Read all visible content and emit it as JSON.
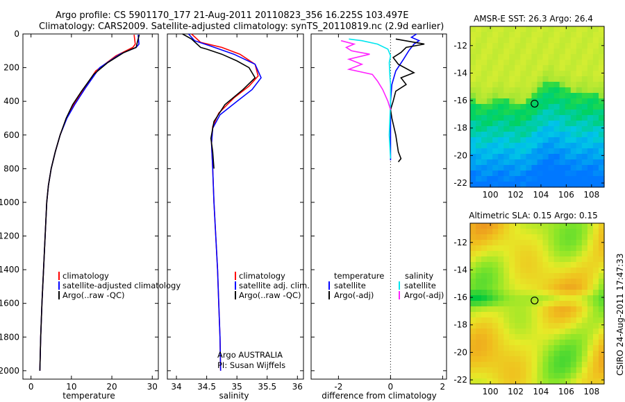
{
  "header": {
    "line1": "Argo profile: CS 5901170_177 21-Aug-2011 20110823_356 16.225S 103.497E",
    "line2": "Climatology: CARS2009. Satellite-adjusted climatology: synTS_20110819.nc (2.9d earlier)"
  },
  "side_label": "CSIRO 24-Aug-2011 17:47:33",
  "colors": {
    "climatology": "#ff0000",
    "satellite": "#0000ff",
    "argo": "#000000",
    "satellite_salinity": "#00e5ee",
    "argo_salinity": "#ff22ff"
  },
  "chart_data": [
    {
      "id": "temp",
      "type": "line",
      "xlabel": "temperature",
      "ylim": [
        2050,
        0
      ],
      "xlim": [
        -2,
        31.5
      ],
      "xticks": [
        0,
        10,
        20,
        30
      ],
      "yticks": [
        0,
        200,
        400,
        600,
        800,
        1000,
        1200,
        1400,
        1600,
        1800,
        2000
      ],
      "legend": [
        "climatology",
        "satellite-adjusted climatology",
        "Argo(..raw -QC)"
      ],
      "series": [
        {
          "name": "climatology",
          "color": "#ff0000",
          "points": [
            [
              25.5,
              5
            ],
            [
              25.8,
              60
            ],
            [
              25.2,
              80
            ],
            [
              21,
              130
            ],
            [
              16,
              220
            ],
            [
              13,
              330
            ],
            [
              10.5,
              420
            ],
            [
              8.8,
              500
            ],
            [
              7.2,
              600
            ],
            [
              6,
              700
            ],
            [
              5,
              800
            ],
            [
              4.3,
              900
            ],
            [
              3.9,
              1000
            ],
            [
              3.5,
              1200
            ],
            [
              3.1,
              1400
            ],
            [
              2.7,
              1600
            ],
            [
              2.4,
              1800
            ],
            [
              2.2,
              2000
            ]
          ]
        },
        {
          "name": "satellite-adjusted climatology",
          "color": "#0000ff",
          "points": [
            [
              26.5,
              5
            ],
            [
              26.7,
              60
            ],
            [
              26,
              80
            ],
            [
              22,
              120
            ],
            [
              17,
              200
            ],
            [
              13.5,
              320
            ],
            [
              10.8,
              420
            ],
            [
              8.9,
              500
            ],
            [
              7.2,
              600
            ],
            [
              6,
              700
            ],
            [
              5,
              800
            ],
            [
              4.3,
              900
            ],
            [
              3.9,
              1000
            ],
            [
              3.5,
              1200
            ],
            [
              3.1,
              1400
            ],
            [
              2.7,
              1600
            ],
            [
              2.4,
              1800
            ],
            [
              2.2,
              2000
            ]
          ]
        },
        {
          "name": "Argo(..raw -QC)",
          "color": "#000000",
          "points": [
            [
              26.8,
              5
            ],
            [
              26.4,
              40
            ],
            [
              26,
              80
            ],
            [
              23,
              110
            ],
            [
              19,
              170
            ],
            [
              15.5,
              240
            ],
            [
              12.5,
              340
            ],
            [
              10.3,
              420
            ],
            [
              8.7,
              500
            ],
            [
              7.2,
              600
            ],
            [
              6,
              700
            ],
            [
              5,
              800
            ],
            [
              4.3,
              900
            ],
            [
              3.9,
              1000
            ],
            [
              3.5,
              1200
            ],
            [
              3.1,
              1400
            ],
            [
              2.7,
              1600
            ],
            [
              2.4,
              1800
            ],
            [
              2.2,
              2000
            ]
          ]
        }
      ]
    },
    {
      "id": "sal",
      "type": "line",
      "xlabel": "salinity",
      "ylim": [
        2050,
        0
      ],
      "xlim": [
        33.85,
        36.1
      ],
      "xticks": [
        34,
        34.5,
        35,
        35.5,
        36
      ],
      "xticklabels": [
        "34",
        "34.5",
        "35",
        "35.5",
        "36"
      ],
      "legend": [
        "climatology",
        "satellite adj. clim.",
        "Argo(..raw -QC)"
      ],
      "annotation": [
        "Argo AUSTRALIA",
        "PI: Susan Wijffels"
      ],
      "series": [
        {
          "name": "climatology",
          "color": "#ff0000",
          "points": [
            [
              34.25,
              0
            ],
            [
              34.4,
              50
            ],
            [
              34.75,
              80
            ],
            [
              35.05,
              120
            ],
            [
              35.3,
              180
            ],
            [
              35.35,
              250
            ],
            [
              35.2,
              310
            ],
            [
              34.95,
              380
            ],
            [
              34.7,
              470
            ],
            [
              34.6,
              550
            ],
            [
              34.58,
              650
            ],
            [
              34.6,
              800
            ],
            [
              34.62,
              1000
            ],
            [
              34.65,
              1200
            ],
            [
              34.68,
              1400
            ],
            [
              34.7,
              1600
            ],
            [
              34.72,
              1800
            ],
            [
              34.73,
              2000
            ]
          ]
        },
        {
          "name": "satellite adj. clim.",
          "color": "#0000ff",
          "points": [
            [
              34.2,
              0
            ],
            [
              34.3,
              40
            ],
            [
              34.55,
              70
            ],
            [
              34.95,
              120
            ],
            [
              35.3,
              180
            ],
            [
              35.4,
              260
            ],
            [
              35.25,
              330
            ],
            [
              35.0,
              400
            ],
            [
              34.72,
              480
            ],
            [
              34.6,
              560
            ],
            [
              34.58,
              650
            ],
            [
              34.6,
              800
            ],
            [
              34.62,
              1000
            ],
            [
              34.65,
              1200
            ],
            [
              34.68,
              1400
            ],
            [
              34.7,
              1600
            ],
            [
              34.72,
              1800
            ],
            [
              34.73,
              2000
            ]
          ]
        },
        {
          "name": "Argo(..raw -QC)",
          "color": "#000000",
          "points": [
            [
              34.1,
              0
            ],
            [
              34.25,
              30
            ],
            [
              34.4,
              80
            ],
            [
              34.5,
              90
            ],
            [
              34.75,
              120
            ],
            [
              35.0,
              160
            ],
            [
              35.2,
              200
            ],
            [
              35.3,
              260
            ],
            [
              35.1,
              330
            ],
            [
              34.8,
              420
            ],
            [
              34.62,
              520
            ],
            [
              34.57,
              620
            ],
            [
              34.6,
              700
            ],
            [
              34.62,
              800
            ]
          ]
        }
      ]
    },
    {
      "id": "diff",
      "type": "line",
      "xlabel": "difference from climatology",
      "ylim": [
        2050,
        0
      ],
      "xlim": [
        -3.05,
        2.15
      ],
      "xticks": [
        -2,
        0,
        2
      ],
      "legend_title": [
        "temperature",
        "salinity"
      ],
      "legend": [
        "satellite",
        "Argo(-adj)",
        "satellite",
        "Argo(-adj)"
      ],
      "series": [
        {
          "name": "satellite",
          "color": "#0000ff",
          "points": [
            [
              1.0,
              0
            ],
            [
              0.8,
              20
            ],
            [
              1.1,
              40
            ],
            [
              0.9,
              60
            ],
            [
              0.7,
              100
            ],
            [
              0.5,
              150
            ],
            [
              0.2,
              220
            ],
            [
              0.05,
              300
            ],
            [
              0.0,
              400
            ],
            [
              0.0,
              500
            ],
            [
              0.0,
              600
            ],
            [
              0.0,
              700
            ],
            [
              0.0,
              750
            ]
          ]
        },
        {
          "name": "Argo(-adj)",
          "color": "#000000",
          "points": [
            [
              0.2,
              30
            ],
            [
              1.3,
              60
            ],
            [
              0.6,
              80
            ],
            [
              0.4,
              110
            ],
            [
              0.1,
              140
            ],
            [
              0.3,
              180
            ],
            [
              0.9,
              230
            ],
            [
              0.4,
              260
            ],
            [
              0.6,
              300
            ],
            [
              0.2,
              340
            ],
            [
              0.1,
              400
            ],
            [
              0.0,
              450
            ],
            [
              0.05,
              500
            ],
            [
              0.2,
              600
            ],
            [
              0.3,
              700
            ],
            [
              0.4,
              740
            ],
            [
              0.3,
              760
            ]
          ]
        },
        {
          "name": "satellite",
          "color": "#00e5ee",
          "points": [
            [
              -1.6,
              30
            ],
            [
              -1.1,
              40
            ],
            [
              -0.5,
              60
            ],
            [
              -0.1,
              90
            ],
            [
              0.0,
              130
            ],
            [
              -0.05,
              170
            ],
            [
              -0.02,
              260
            ],
            [
              0.0,
              300
            ],
            [
              0.0,
              400
            ],
            [
              -0.05,
              600
            ],
            [
              0.0,
              740
            ]
          ]
        },
        {
          "name": "Argo(-adj)",
          "color": "#ff22ff",
          "points": [
            [
              -1.9,
              40
            ],
            [
              -1.4,
              60
            ],
            [
              -1.7,
              80
            ],
            [
              -1.5,
              100
            ],
            [
              -0.8,
              120
            ],
            [
              -1.6,
              150
            ],
            [
              -1.1,
              180
            ],
            [
              -1.6,
              210
            ],
            [
              -0.7,
              240
            ],
            [
              -0.5,
              280
            ],
            [
              -0.3,
              330
            ],
            [
              -0.1,
              400
            ],
            [
              0.0,
              450
            ]
          ]
        }
      ]
    },
    {
      "id": "sst",
      "type": "heatmap",
      "title": "AMSR-E SST: 26.3 Argo: 26.4",
      "xticks": [
        100,
        102,
        104,
        106,
        108
      ],
      "yticks": [
        -12,
        -14,
        -16,
        -18,
        -20,
        -22
      ],
      "argo_position": [
        103.497,
        -16.225
      ]
    },
    {
      "id": "sla",
      "type": "heatmap",
      "title": "Altimetric SLA: 0.15 Argo: 0.15",
      "xticks": [
        100,
        102,
        104,
        106,
        108
      ],
      "yticks": [
        -12,
        -14,
        -16,
        -18,
        -20,
        -22
      ],
      "argo_position": [
        103.497,
        -16.225
      ]
    }
  ]
}
